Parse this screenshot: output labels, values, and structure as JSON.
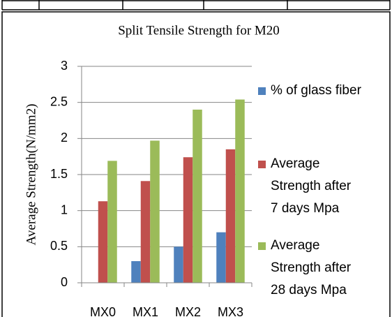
{
  "chart_data": {
    "type": "bar",
    "title": "Split Tensile Strength for M20",
    "y_label": "Average Strength(N/mm2)",
    "categories": [
      "MX0",
      "MX1",
      "MX2",
      "MX3"
    ],
    "series": [
      {
        "name": "% of glass fiber",
        "color": "#4f81bd",
        "values": [
          0,
          0.3,
          0.5,
          0.7
        ]
      },
      {
        "name": "Average Strength after 7 days Mpa",
        "color": "#c0504d",
        "values": [
          1.13,
          1.41,
          1.74,
          1.85
        ]
      },
      {
        "name": "Average Strength after 28 days Mpa",
        "color": "#9bbb59",
        "values": [
          1.69,
          1.97,
          2.4,
          2.54
        ]
      }
    ],
    "ylim": [
      0,
      3
    ],
    "yticks": [
      0,
      0.5,
      1,
      1.5,
      2,
      2.5,
      3
    ],
    "grid": true,
    "legend": "right"
  }
}
